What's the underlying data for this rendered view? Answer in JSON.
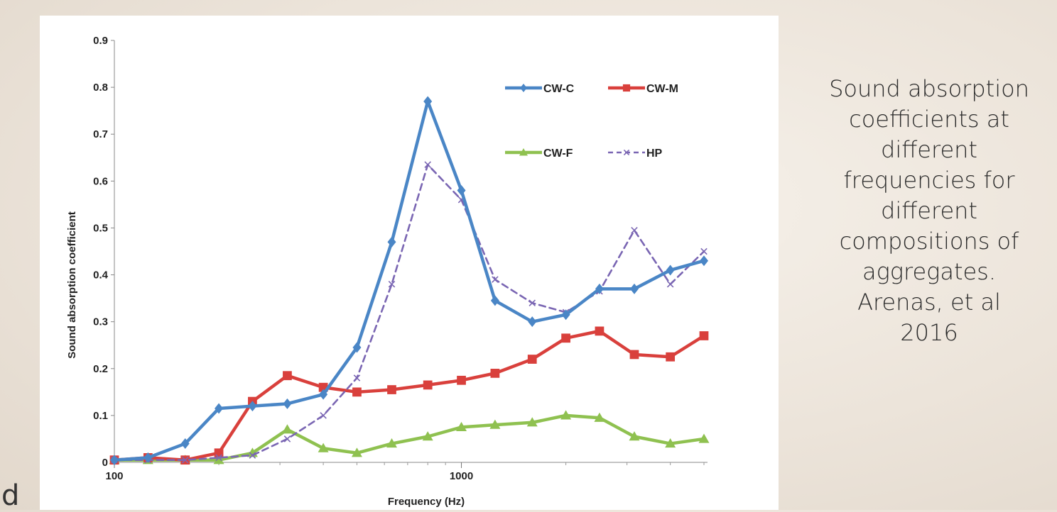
{
  "caption": "Sound absorption\ncoefficients at\ndifferent\nfrequencies for\ndifferent\ncompositions of\naggregates.\nArenas, et al\n2016",
  "corner_letter": "d",
  "chart_data": {
    "type": "line",
    "xscale": "log",
    "xlabel": "Frequency (Hz)",
    "ylabel": "Sound absorption coefficient",
    "x_tick_labels": [
      "100",
      "1000"
    ],
    "x_ticks": [
      100,
      1000
    ],
    "y_ticks": [
      0,
      0.1,
      0.2,
      0.3,
      0.4,
      0.5,
      0.6,
      0.7,
      0.8,
      0.9
    ],
    "y_tick_labels": [
      "0",
      "0.1",
      "0.2",
      "0.3",
      "0.4",
      "0.5",
      "0.6",
      "0.7",
      "0.8",
      "0.9"
    ],
    "ylim": [
      0,
      0.9
    ],
    "xlim": [
      100,
      5000
    ],
    "grid": false,
    "legend_position": "top-right",
    "x": [
      100,
      125,
      160,
      200,
      250,
      315,
      400,
      500,
      630,
      800,
      1000,
      1250,
      1600,
      2000,
      2500,
      3150,
      4000,
      5000
    ],
    "series": [
      {
        "name": "CW-C",
        "color": "#4a86c6",
        "marker": "diamond",
        "dash": false,
        "values": [
          0.005,
          0.01,
          0.04,
          0.115,
          0.12,
          0.125,
          0.145,
          0.245,
          0.47,
          0.77,
          0.58,
          0.345,
          0.3,
          0.315,
          0.37,
          0.37,
          0.41,
          0.43
        ]
      },
      {
        "name": "CW-M",
        "color": "#d9403c",
        "marker": "square",
        "dash": false,
        "values": [
          0.005,
          0.01,
          0.005,
          0.02,
          0.13,
          0.185,
          0.16,
          0.15,
          0.155,
          0.165,
          0.175,
          0.19,
          0.22,
          0.265,
          0.28,
          0.23,
          0.225,
          0.27
        ]
      },
      {
        "name": "CW-F",
        "color": "#8fc150",
        "marker": "triangle",
        "dash": false,
        "values": [
          0.005,
          0.005,
          0.005,
          0.005,
          0.02,
          0.07,
          0.03,
          0.02,
          0.04,
          0.055,
          0.075,
          0.08,
          0.085,
          0.1,
          0.095,
          0.055,
          0.04,
          0.05
        ]
      },
      {
        "name": "HP",
        "color": "#7a66b3",
        "marker": "x",
        "dash": true,
        "values": [
          0.005,
          0.005,
          0.005,
          0.01,
          0.015,
          0.05,
          0.1,
          0.18,
          0.38,
          0.635,
          0.56,
          0.39,
          0.34,
          0.32,
          0.365,
          0.495,
          0.38,
          0.45
        ]
      }
    ]
  }
}
